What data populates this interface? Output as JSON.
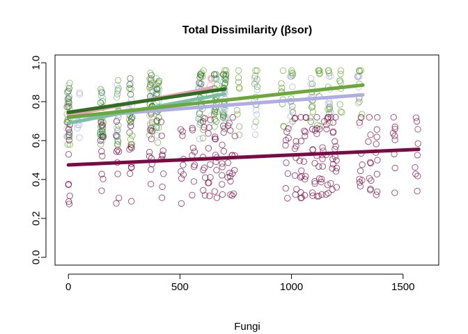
{
  "chart_data": {
    "type": "scatter",
    "title": "Total Dissimilarity (βsor)",
    "xlabel": "Fungi",
    "ylabel": "",
    "xlim": [
      -60,
      1660
    ],
    "ylim": [
      -0.04,
      1.04
    ],
    "x_ticks": [
      0,
      500,
      1000,
      1500
    ],
    "y_ticks": [
      0.0,
      0.2,
      0.4,
      0.6,
      0.8,
      1.0
    ],
    "x_tick_labels": [
      "0",
      "500",
      "1000",
      "1500"
    ],
    "y_tick_labels": [
      "0.0",
      "0.2",
      "0.4",
      "0.6",
      "0.8",
      "1.0"
    ],
    "grid": false,
    "legend": "none",
    "series": [
      {
        "color": "#AEADE6",
        "marker": "open-circle",
        "x_clusters": [
          0,
          45,
          150,
          220,
          280,
          380,
          590,
          700,
          840,
          1000,
          1090,
          1170,
          1300
        ],
        "y_range": [
          0.6,
          0.93
        ],
        "trend": {
          "x": [
            0,
            1320
          ],
          "y": [
            0.72,
            0.835
          ]
        }
      },
      {
        "color": "#7BBFA6",
        "marker": "open-circle",
        "x_clusters": [
          0,
          150,
          220,
          370,
          400,
          590,
          660,
          700
        ],
        "y_range": [
          0.62,
          0.92
        ],
        "trend": {
          "x": [
            0,
            700
          ],
          "y": [
            0.69,
            0.84
          ]
        }
      },
      {
        "color": "#E8A0B8",
        "marker": "open-circle",
        "x_clusters": [
          0,
          370,
          640
        ],
        "y_range": [
          0.62,
          0.92
        ],
        "trend": {
          "x": [
            0,
            640
          ],
          "y": [
            0.73,
            0.87
          ]
        }
      },
      {
        "color": "#6AA83A",
        "marker": "open-circle",
        "x_clusters": [
          0,
          150,
          220,
          280,
          370,
          400,
          600,
          660,
          700,
          760,
          840,
          960,
          1000,
          1090,
          1120,
          1170,
          1220,
          1310
        ],
        "y_range": [
          0.58,
          0.96
        ],
        "trend": {
          "x": [
            0,
            1320
          ],
          "y": [
            0.72,
            0.885
          ]
        }
      },
      {
        "color": "#2F6E1E",
        "marker": "open-circle",
        "x_clusters": [
          0,
          150,
          280,
          370,
          400,
          590,
          660,
          700
        ],
        "y_range": [
          0.62,
          0.94
        ],
        "trend": {
          "x": [
            0,
            700
          ],
          "y": [
            0.745,
            0.865
          ]
        }
      },
      {
        "color": "#7A0A45",
        "marker": "open-circle",
        "x_clusters": [
          0,
          150,
          220,
          280,
          370,
          420,
          510,
          560,
          610,
          630,
          660,
          690,
          720,
          740,
          980,
          1020,
          1040,
          1060,
          1100,
          1120,
          1140,
          1160,
          1180,
          1200,
          1310,
          1350,
          1380,
          1460,
          1560
        ],
        "y_range": [
          0.27,
          0.72
        ],
        "trend": {
          "x": [
            0,
            1570
          ],
          "y": [
            0.475,
            0.555
          ]
        }
      }
    ]
  }
}
